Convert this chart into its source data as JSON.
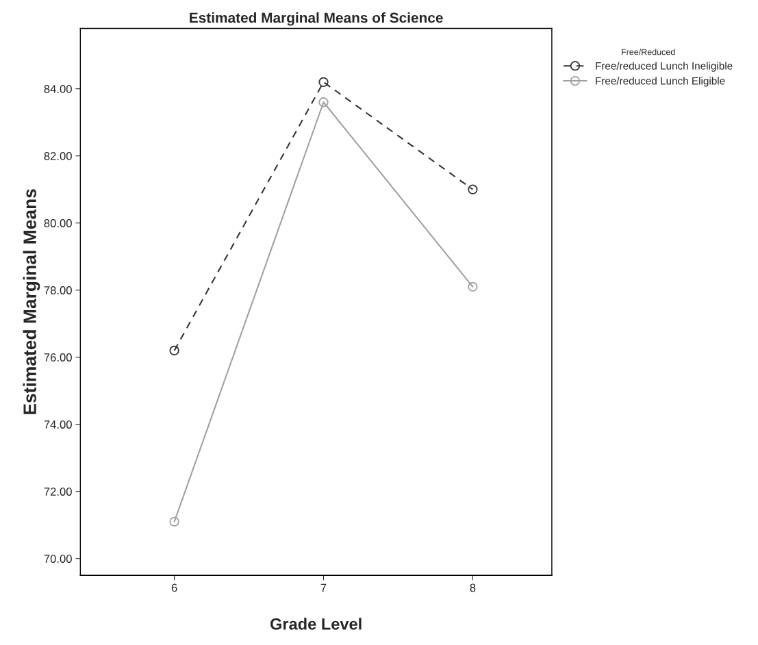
{
  "chart_data": {
    "type": "line",
    "title": "Estimated Marginal Means of Science",
    "xlabel": "Grade Level",
    "ylabel": "Estimated Marginal Means",
    "legend_title": "Free/Reduced",
    "x": [
      6,
      7,
      8
    ],
    "xlim": [
      5.37,
      8.53
    ],
    "xticks": [
      6,
      7,
      8
    ],
    "ylim": [
      69.5,
      85.8
    ],
    "yticks": [
      {
        "value": 70,
        "label": "70.00"
      },
      {
        "value": 72,
        "label": "72.00"
      },
      {
        "value": 74,
        "label": "74.00"
      },
      {
        "value": 76,
        "label": "76.00"
      },
      {
        "value": 78,
        "label": "78.00"
      },
      {
        "value": 80,
        "label": "80.00"
      },
      {
        "value": 82,
        "label": "82.00"
      },
      {
        "value": 84,
        "label": "84.00"
      }
    ],
    "series": [
      {
        "name": "Free/reduced Lunch Ineligible",
        "color": "#333333",
        "values": [
          76.2,
          84.2,
          81.0
        ],
        "line_style": "dashed"
      },
      {
        "name": "Free/reduced Lunch Eligible",
        "color": "#a0a0a0",
        "values": [
          71.1,
          83.6,
          78.1
        ],
        "line_style": "solid"
      }
    ],
    "marker": "circle",
    "legend": "top right",
    "grid": false
  }
}
